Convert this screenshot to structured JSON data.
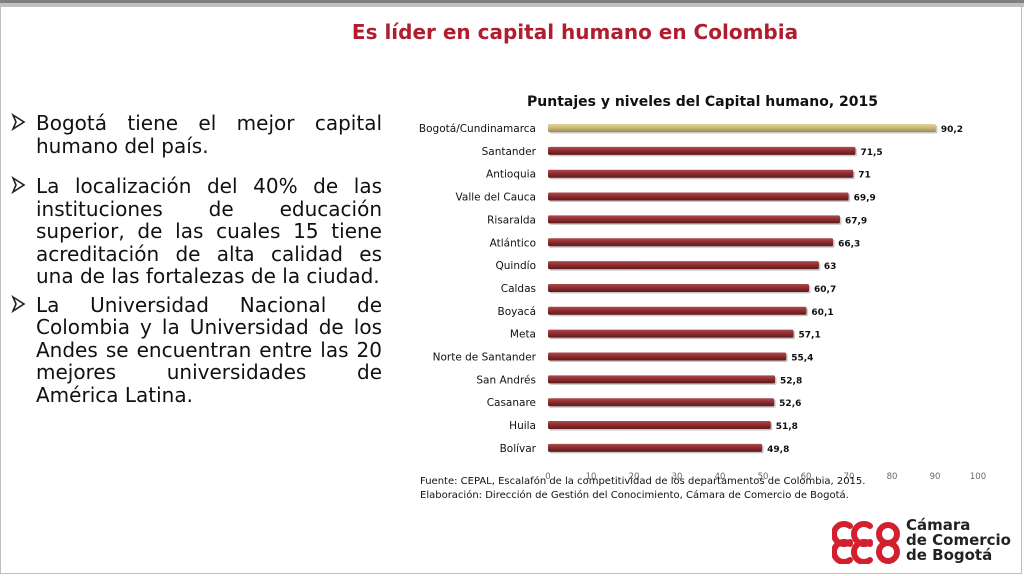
{
  "slide": {
    "title": "Es líder en capital humano en Colombia"
  },
  "bullets": [
    {
      "text": "Bogotá tiene el mejor capital humano del país."
    },
    {
      "text": "La localización del 40% de las instituciones de educación superior, de las cuales 15 tiene acreditación de alta calidad es una de las fortalezas de la ciudad."
    },
    {
      "text": "La Universidad Nacional de Colombia y la Universidad de los Andes se encuentran entre las 20 mejores universidades de América Latina."
    }
  ],
  "chart_data": {
    "type": "bar",
    "orientation": "horizontal",
    "title": "Puntajes y niveles del Capital humano, 2015",
    "categories": [
      "Bogotá/Cundinamarca",
      "Santander",
      "Antioquia",
      "Valle del Cauca",
      "Risaralda",
      "Atlántico",
      "Quindío",
      "Caldas",
      "Boyacá",
      "Meta",
      "Norte de Santander",
      "San Andrés",
      "Casanare",
      "Huila",
      "Bolívar"
    ],
    "values": [
      90.2,
      71.5,
      71,
      69.9,
      67.9,
      66.3,
      63,
      60.7,
      60.1,
      57.1,
      55.4,
      52.8,
      52.6,
      51.8,
      49.8
    ],
    "value_labels": [
      "90,2",
      "71,5",
      "71",
      "69,9",
      "67,9",
      "66,3",
      "63",
      "60,7",
      "60,1",
      "57,1",
      "55,4",
      "52,8",
      "52,6",
      "51,8",
      "49,8"
    ],
    "xlim": [
      0,
      100
    ],
    "xticks": [
      0,
      10,
      20,
      30,
      40,
      50,
      60,
      70,
      80,
      90,
      100
    ],
    "colors": {
      "highlight": "#c9b778",
      "default": "#8b2c2e"
    },
    "grid": false,
    "legend": "none"
  },
  "source": {
    "line1": "Fuente: CEPAL, Escalafón de la competitividad de los departamentos de Colombia, 2015.",
    "line2": "Elaboración: Dirección de Gestión del Conocimiento, Cámara de Comercio de Bogotá."
  },
  "logo": {
    "line1": "Cámara",
    "line2": "de Comercio",
    "line3": "de Bogotá",
    "color": "#d3202f",
    "icon": "ccb-logo-icon"
  }
}
